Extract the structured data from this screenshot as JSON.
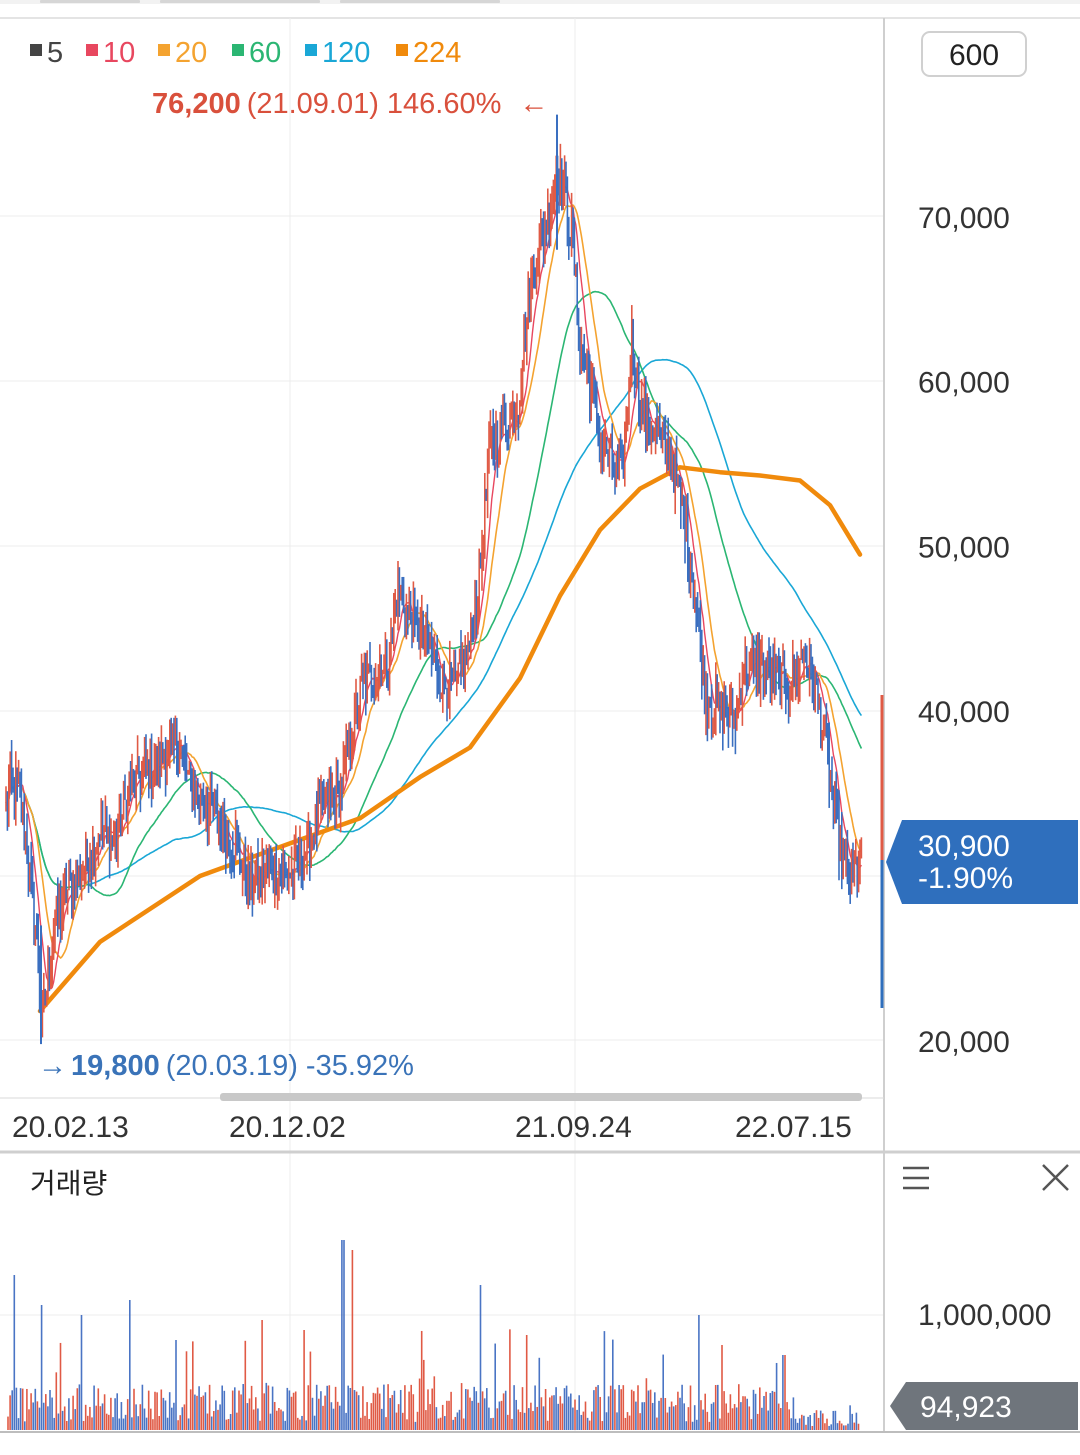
{
  "period_button": "600",
  "legend": [
    {
      "label": "5",
      "color": "#444444"
    },
    {
      "label": "10",
      "color": "#e8475f"
    },
    {
      "label": "20",
      "color": "#f4a330"
    },
    {
      "label": "60",
      "color": "#2bb673"
    },
    {
      "label": "120",
      "color": "#1aa7d6"
    },
    {
      "label": "224",
      "color": "#f08a0c"
    }
  ],
  "high_marker": {
    "price": "76,200",
    "date": "(21.09.01)",
    "change": "146.60%",
    "arrow": "←",
    "color": "#d9503c"
  },
  "low_marker": {
    "arrow": "→",
    "price": "19,800",
    "date": "(20.03.19)",
    "change": "-35.92%",
    "color": "#3a73b8"
  },
  "current_price": {
    "price": "30,900",
    "change": "-1.90%",
    "color": "#2f6fbd"
  },
  "volume_panel": {
    "title": "거래량",
    "current_volume": "94,923",
    "menu_icon": "menu-icon",
    "close_icon": "close-icon"
  },
  "chart_data": [
    {
      "type": "candlestick",
      "x_ticks": [
        "20.02.13",
        "20.12.02",
        "21.09.24",
        "22.07.15"
      ],
      "y_ticks": [
        "70,000",
        "60,000",
        "50,000",
        "40,000",
        "20,000"
      ],
      "y_tick_values": [
        70000,
        60000,
        50000,
        40000,
        20000
      ],
      "ylim": [
        18000,
        80000
      ],
      "price_path": [
        [
          0,
          32000
        ],
        [
          10,
          35500
        ],
        [
          20,
          35000
        ],
        [
          28,
          31000
        ],
        [
          38,
          25000
        ],
        [
          42,
          21000
        ],
        [
          55,
          27000
        ],
        [
          70,
          29500
        ],
        [
          85,
          30500
        ],
        [
          100,
          33000
        ],
        [
          115,
          32000
        ],
        [
          130,
          35500
        ],
        [
          150,
          36500
        ],
        [
          170,
          37500
        ],
        [
          180,
          38000
        ],
        [
          190,
          35500
        ],
        [
          205,
          34500
        ],
        [
          220,
          33000
        ],
        [
          235,
          32000
        ],
        [
          250,
          29500
        ],
        [
          270,
          30500
        ],
        [
          290,
          30000
        ],
        [
          305,
          31500
        ],
        [
          320,
          34000
        ],
        [
          340,
          35000
        ],
        [
          350,
          38000
        ],
        [
          362,
          41500
        ],
        [
          378,
          42500
        ],
        [
          390,
          43500
        ],
        [
          398,
          47500
        ],
        [
          410,
          45500
        ],
        [
          425,
          44500
        ],
        [
          440,
          42000
        ],
        [
          455,
          41500
        ],
        [
          470,
          44000
        ],
        [
          480,
          48500
        ],
        [
          490,
          56000
        ],
        [
          505,
          57500
        ],
        [
          518,
          58500
        ],
        [
          528,
          64500
        ],
        [
          537,
          67500
        ],
        [
          548,
          70000
        ],
        [
          557,
          73000
        ],
        [
          565,
          71000
        ],
        [
          573,
          68500
        ],
        [
          580,
          62000
        ],
        [
          590,
          60000
        ],
        [
          600,
          56500
        ],
        [
          612,
          55000
        ],
        [
          622,
          54000
        ],
        [
          632,
          62500
        ],
        [
          642,
          58000
        ],
        [
          656,
          57000
        ],
        [
          670,
          55500
        ],
        [
          685,
          51500
        ],
        [
          697,
          46000
        ],
        [
          705,
          41000
        ],
        [
          720,
          40000
        ],
        [
          735,
          39500
        ],
        [
          745,
          43000
        ],
        [
          760,
          42500
        ],
        [
          775,
          42000
        ],
        [
          790,
          41500
        ],
        [
          805,
          43500
        ],
        [
          815,
          41500
        ],
        [
          825,
          38500
        ],
        [
          835,
          33500
        ],
        [
          845,
          30500
        ],
        [
          852,
          30000
        ],
        [
          860,
          30900
        ]
      ],
      "moving_averages": {
        "5": "follows price closely",
        "224": [
          [
            40,
            21800
          ],
          [
            100,
            26000
          ],
          [
            200,
            30000
          ],
          [
            300,
            32200
          ],
          [
            360,
            33500
          ],
          [
            420,
            36000
          ],
          [
            470,
            37800
          ],
          [
            520,
            42000
          ],
          [
            560,
            47000
          ],
          [
            600,
            51000
          ],
          [
            640,
            53500
          ],
          [
            680,
            54800
          ],
          [
            720,
            54500
          ],
          [
            760,
            54300
          ],
          [
            800,
            54000
          ],
          [
            830,
            52500
          ],
          [
            860,
            49500
          ]
        ]
      }
    },
    {
      "type": "bar",
      "name": "거래량",
      "y_ticks": [
        "1,000,000"
      ],
      "current": 94923
    }
  ]
}
